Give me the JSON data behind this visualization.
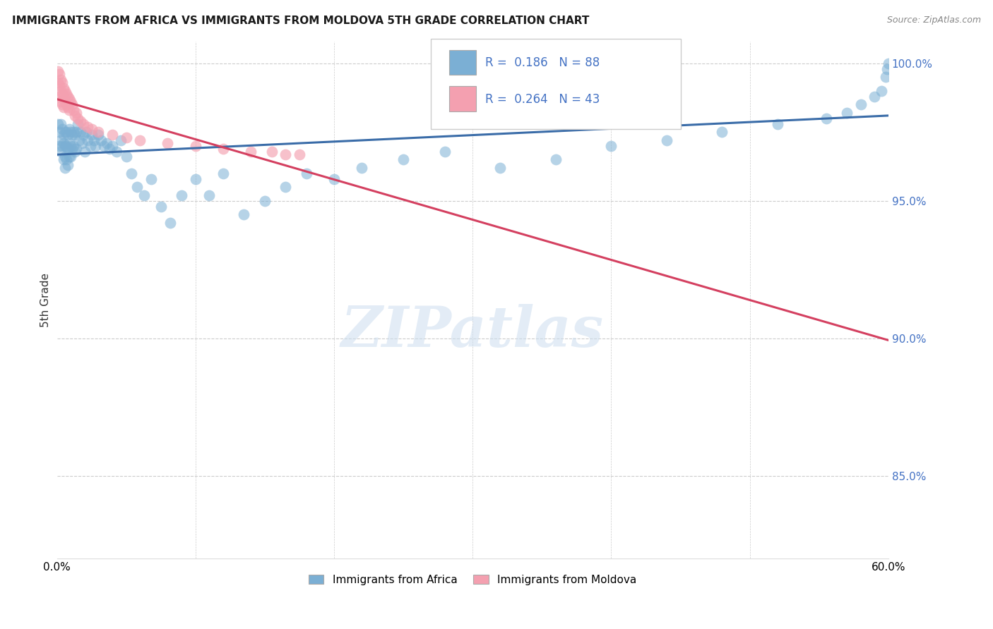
{
  "title": "IMMIGRANTS FROM AFRICA VS IMMIGRANTS FROM MOLDOVA 5TH GRADE CORRELATION CHART",
  "source": "Source: ZipAtlas.com",
  "ylabel": "5th Grade",
  "x_min": 0.0,
  "x_max": 0.6,
  "y_min": 0.82,
  "y_max": 1.008,
  "y_ticks": [
    0.85,
    0.9,
    0.95,
    1.0
  ],
  "y_tick_labels": [
    "85.0%",
    "90.0%",
    "95.0%",
    "100.0%"
  ],
  "x_ticks": [
    0.0,
    0.1,
    0.2,
    0.3,
    0.4,
    0.5,
    0.6
  ],
  "africa_color": "#7bafd4",
  "moldova_color": "#f4a0b0",
  "trend_africa_color": "#3a6ca8",
  "trend_moldova_color": "#d44060",
  "legend_R_africa": "0.186",
  "legend_N_africa": "88",
  "legend_R_moldova": "0.264",
  "legend_N_moldova": "43",
  "watermark": "ZIPatlas",
  "africa_x": [
    0.001,
    0.002,
    0.002,
    0.003,
    0.003,
    0.003,
    0.004,
    0.004,
    0.005,
    0.005,
    0.005,
    0.006,
    0.006,
    0.006,
    0.006,
    0.007,
    0.007,
    0.007,
    0.008,
    0.008,
    0.008,
    0.009,
    0.009,
    0.009,
    0.01,
    0.01,
    0.01,
    0.011,
    0.011,
    0.012,
    0.012,
    0.013,
    0.013,
    0.014,
    0.014,
    0.015,
    0.016,
    0.017,
    0.018,
    0.019,
    0.02,
    0.021,
    0.022,
    0.024,
    0.025,
    0.027,
    0.028,
    0.03,
    0.032,
    0.034,
    0.036,
    0.038,
    0.04,
    0.043,
    0.046,
    0.05,
    0.054,
    0.058,
    0.063,
    0.068,
    0.075,
    0.082,
    0.09,
    0.1,
    0.11,
    0.12,
    0.135,
    0.15,
    0.165,
    0.18,
    0.2,
    0.22,
    0.25,
    0.28,
    0.32,
    0.36,
    0.4,
    0.44,
    0.48,
    0.52,
    0.555,
    0.57,
    0.58,
    0.59,
    0.595,
    0.598,
    0.599,
    0.6
  ],
  "africa_y": [
    0.978,
    0.975,
    0.97,
    0.978,
    0.972,
    0.968,
    0.976,
    0.97,
    0.974,
    0.971,
    0.965,
    0.975,
    0.97,
    0.966,
    0.962,
    0.975,
    0.97,
    0.965,
    0.974,
    0.969,
    0.963,
    0.976,
    0.971,
    0.966,
    0.975,
    0.97,
    0.966,
    0.974,
    0.969,
    0.975,
    0.97,
    0.974,
    0.968,
    0.975,
    0.969,
    0.978,
    0.972,
    0.975,
    0.971,
    0.974,
    0.968,
    0.975,
    0.972,
    0.97,
    0.974,
    0.972,
    0.97,
    0.974,
    0.972,
    0.97,
    0.971,
    0.969,
    0.97,
    0.968,
    0.972,
    0.966,
    0.96,
    0.955,
    0.952,
    0.958,
    0.948,
    0.942,
    0.952,
    0.958,
    0.952,
    0.96,
    0.945,
    0.95,
    0.955,
    0.96,
    0.958,
    0.962,
    0.965,
    0.968,
    0.962,
    0.965,
    0.97,
    0.972,
    0.975,
    0.978,
    0.98,
    0.982,
    0.985,
    0.988,
    0.99,
    0.995,
    0.998,
    1.0
  ],
  "moldova_x": [
    0.001,
    0.001,
    0.002,
    0.002,
    0.002,
    0.003,
    0.003,
    0.003,
    0.004,
    0.004,
    0.004,
    0.005,
    0.005,
    0.005,
    0.006,
    0.006,
    0.007,
    0.007,
    0.008,
    0.008,
    0.009,
    0.009,
    0.01,
    0.011,
    0.012,
    0.013,
    0.014,
    0.015,
    0.017,
    0.019,
    0.022,
    0.025,
    0.03,
    0.04,
    0.05,
    0.06,
    0.08,
    0.1,
    0.12,
    0.14,
    0.155,
    0.165,
    0.175
  ],
  "moldova_y": [
    0.997,
    0.993,
    0.996,
    0.992,
    0.988,
    0.994,
    0.99,
    0.986,
    0.993,
    0.989,
    0.985,
    0.991,
    0.988,
    0.984,
    0.99,
    0.986,
    0.989,
    0.985,
    0.988,
    0.984,
    0.987,
    0.983,
    0.986,
    0.985,
    0.983,
    0.981,
    0.982,
    0.98,
    0.979,
    0.978,
    0.977,
    0.976,
    0.975,
    0.974,
    0.973,
    0.972,
    0.971,
    0.97,
    0.969,
    0.968,
    0.968,
    0.967,
    0.967
  ]
}
